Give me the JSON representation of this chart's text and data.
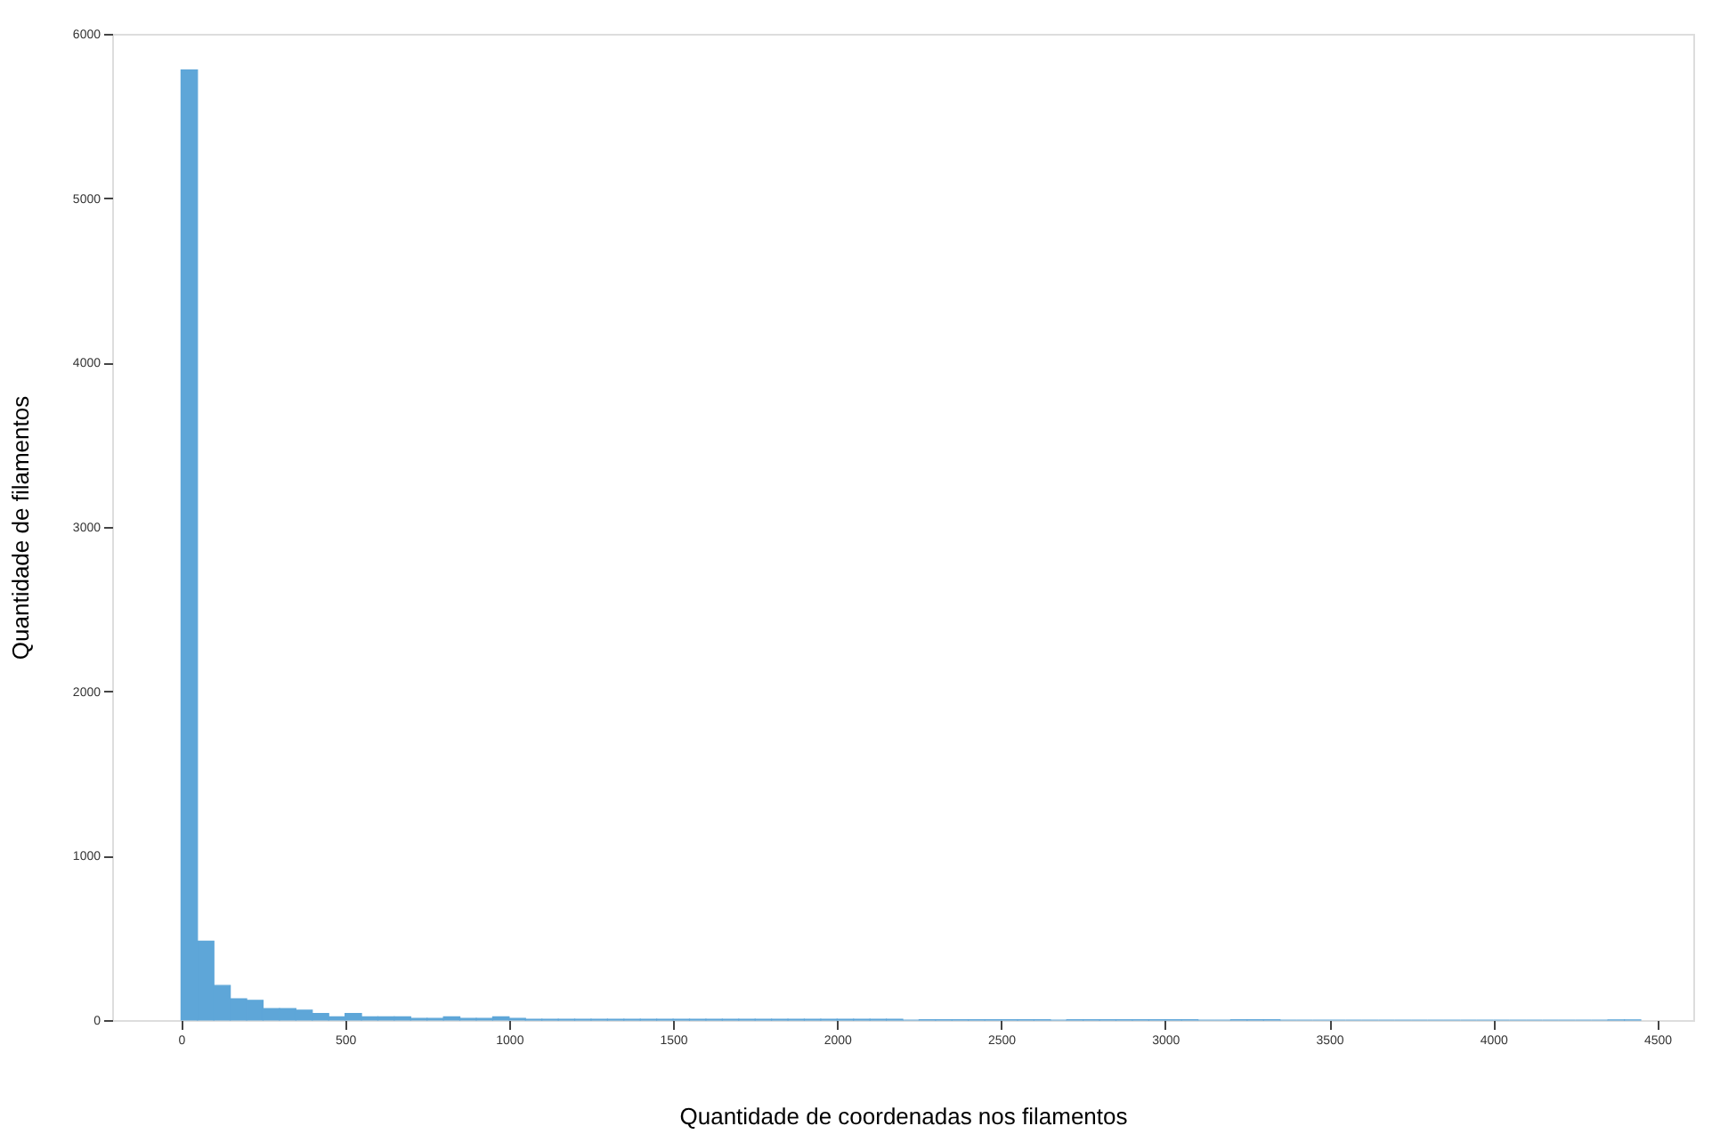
{
  "chart_data": {
    "type": "histogram",
    "xlabel": "Quantidade de coordenadas nos filamentos",
    "ylabel": "Quantidade de filamentos",
    "bins": [
      0,
      50,
      100,
      150,
      200,
      250,
      300,
      350,
      400,
      450,
      500,
      550,
      600,
      650,
      700,
      750,
      800,
      850,
      900,
      950,
      1000,
      1050,
      1100,
      1150,
      1200,
      1250,
      1300,
      1350,
      1400,
      1450,
      1500,
      1550,
      1600,
      1650,
      1700,
      1750,
      1800,
      1850,
      1900,
      1950,
      2000,
      2050,
      2100,
      2150,
      2200,
      2250,
      2300,
      2350,
      2400,
      2450,
      2500,
      2550,
      2600,
      2650,
      2700,
      2750,
      2800,
      2850,
      2900,
      2950,
      3000,
      3050,
      3100,
      3150,
      3200,
      3250,
      3300,
      3350,
      3400,
      3450,
      3500,
      3550,
      3600,
      3650,
      3700,
      3750,
      3800,
      3850,
      3900,
      3950,
      4000,
      4050,
      4100,
      4150,
      4200,
      4250,
      4300,
      4350,
      4400,
      4450
    ],
    "values": [
      5780,
      480,
      210,
      130,
      120,
      70,
      70,
      60,
      40,
      20,
      40,
      20,
      20,
      20,
      10,
      10,
      20,
      10,
      10,
      20,
      10,
      5,
      5,
      5,
      5,
      5,
      5,
      5,
      5,
      5,
      5,
      5,
      5,
      5,
      5,
      5,
      5,
      5,
      5,
      5,
      5,
      5,
      5,
      5,
      0,
      2,
      2,
      2,
      2,
      2,
      2,
      2,
      2,
      0,
      2,
      2,
      2,
      2,
      2,
      2,
      2,
      2,
      0,
      0,
      2,
      2,
      2,
      0,
      0,
      0,
      0,
      0,
      0,
      0,
      0,
      0,
      0,
      0,
      0,
      0,
      0,
      0,
      0,
      0,
      0,
      0,
      0,
      1,
      1
    ],
    "color": "#5ea6d8",
    "xlim": [
      -210,
      4610
    ],
    "ylim": [
      0,
      6000
    ],
    "xticks": [
      0,
      500,
      1000,
      1500,
      2000,
      2500,
      3000,
      3500,
      4000,
      4500
    ],
    "yticks": [
      0,
      1000,
      2000,
      3000,
      4000,
      5000,
      6000
    ],
    "grid": false
  }
}
